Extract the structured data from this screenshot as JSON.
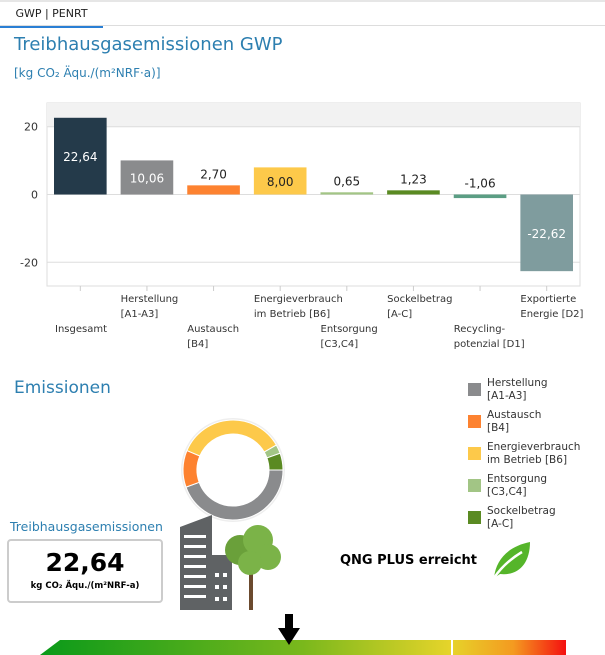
{
  "tabs": [
    {
      "label": "GWP | PENRT",
      "active": true
    }
  ],
  "header": {
    "title": "Treibhausgasemissionen GWP",
    "unit": "[kg CO₂ Äqu./(m²NRF·a)]"
  },
  "chart_data": {
    "type": "bar",
    "categories": [
      "Insgesamt",
      "Herstellung [A1-A3]",
      "Austausch [B4]",
      "Energieverbrauch im Betrieb [B6]",
      "Entsorgung [C3,C4]",
      "Sockelbetrag [A-C]",
      "Recycling-potenzial [D1]",
      "Exportierte Energie [D2]"
    ],
    "category_lines": [
      [
        "Insgesamt"
      ],
      [
        "Herstellung",
        "[A1-A3]"
      ],
      [
        "Austausch",
        "[B4]"
      ],
      [
        "Energieverbrauch",
        "im Betrieb [B6]"
      ],
      [
        "Entsorgung",
        "[C3,C4]"
      ],
      [
        "Sockelbetrag",
        "[A-C]"
      ],
      [
        "Recycling-",
        "potenzial [D1]"
      ],
      [
        "Exportierte",
        "Energie [D2]"
      ]
    ],
    "values": [
      22.64,
      10.06,
      2.7,
      8.0,
      0.65,
      1.23,
      -1.06,
      -22.62
    ],
    "labels": [
      "22,64",
      "10,06",
      "2,70",
      "8,00",
      "0,65",
      "1,23",
      "-1,06",
      "-22,62"
    ],
    "colors": [
      "#243a4a",
      "#8a8b8d",
      "#fd8230",
      "#fdc94a",
      "#a2c585",
      "#5a8a22",
      "#5b9e84",
      "#7f9c9e"
    ],
    "yticks": [
      20,
      0,
      -20
    ],
    "ylim": [
      -27,
      27
    ],
    "grid": true
  },
  "emissions": {
    "title": "Emissionen",
    "donut": {
      "type": "pie",
      "labels": [
        "Herstellung [A1-A3]",
        "Austausch [B4]",
        "Energieverbrauch im Betrieb [B6]",
        "Entsorgung [C3,C4]",
        "Sockelbetrag [A-C]"
      ],
      "values": [
        10.06,
        2.7,
        8.0,
        0.65,
        1.23
      ],
      "colors": [
        "#8a8b8d",
        "#fd8230",
        "#fdc94a",
        "#a2c585",
        "#5a8a22"
      ]
    },
    "legend": [
      {
        "l1": "Herstellung",
        "l2": "[A1-A3]",
        "color": "#8a8b8d"
      },
      {
        "l1": "Austausch",
        "l2": "[B4]",
        "color": "#fd8230"
      },
      {
        "l1": "Energieverbrauch",
        "l2": "im Betrieb [B6]",
        "color": "#fdc94a"
      },
      {
        "l1": "Entsorgung",
        "l2": "[C3,C4]",
        "color": "#a2c585"
      },
      {
        "l1": "Sockelbetrag",
        "l2": "[A-C]",
        "color": "#5a8a22"
      }
    ]
  },
  "kpi": {
    "label": "Treibhausgasemissionen",
    "value": "22,64",
    "unit": "kg CO₂ Äqu./(m²NRF-a)"
  },
  "qng": {
    "text": "QNG PLUS erreicht"
  }
}
